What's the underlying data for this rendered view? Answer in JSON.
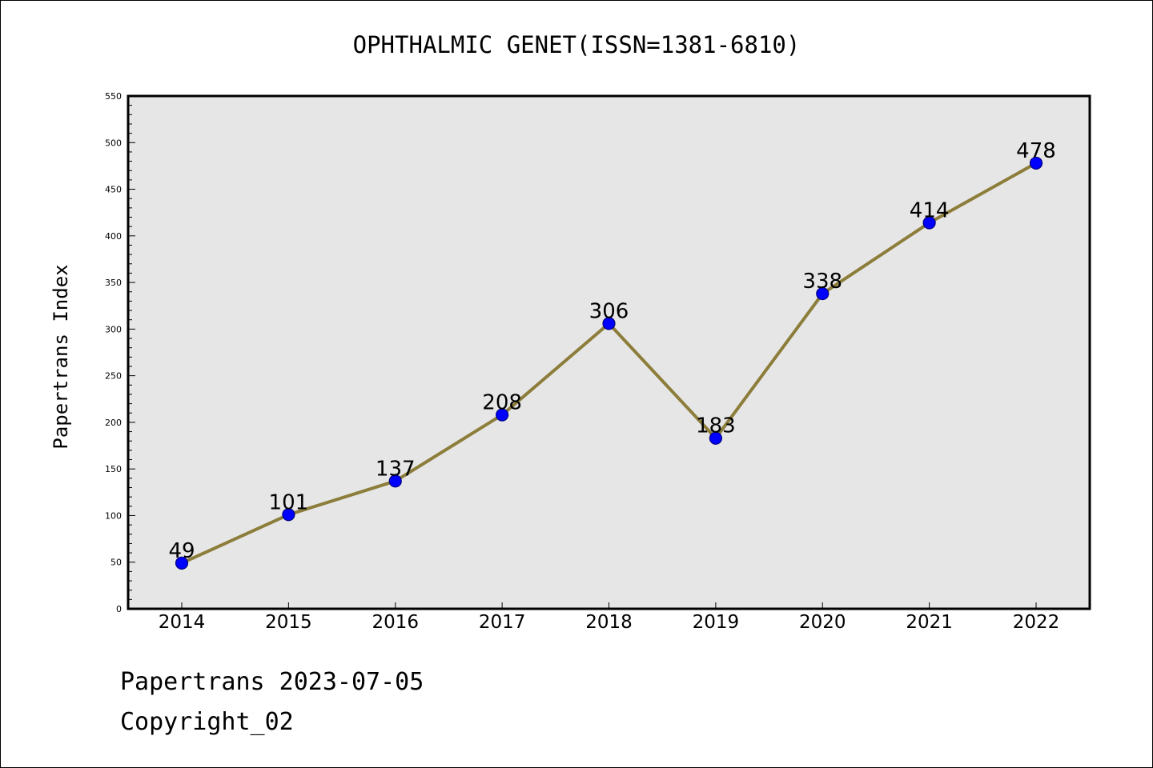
{
  "chart_data": {
    "type": "line",
    "title": "OPHTHALMIC GENET(ISSN=1381-6810)",
    "xlabel": "",
    "ylabel": "Papertrans Index",
    "categories": [
      "2014",
      "2015",
      "2016",
      "2017",
      "2018",
      "2019",
      "2020",
      "2021",
      "2022"
    ],
    "series": [
      {
        "values": [
          49,
          101,
          137,
          208,
          306,
          183,
          338,
          414,
          478
        ]
      }
    ],
    "data_labels": [
      "49",
      "101",
      "137",
      "208",
      "306",
      "183",
      "338",
      "414",
      "478"
    ],
    "ylim": [
      0,
      550
    ],
    "yticks": [
      "0",
      "50",
      "100",
      "150",
      "200",
      "250",
      "300",
      "350",
      "400",
      "450",
      "500",
      "550"
    ],
    "grid": false,
    "legend": "none",
    "colors": {
      "line": "#8c7d3a",
      "marker_fill": "#0000ff",
      "marker_edge": "#000080",
      "plot_background": "#e6e6e6",
      "page_background": "#ffffff"
    }
  },
  "footer": {
    "line1": "Papertrans 2023-07-05",
    "line2": "Copyright_02"
  }
}
